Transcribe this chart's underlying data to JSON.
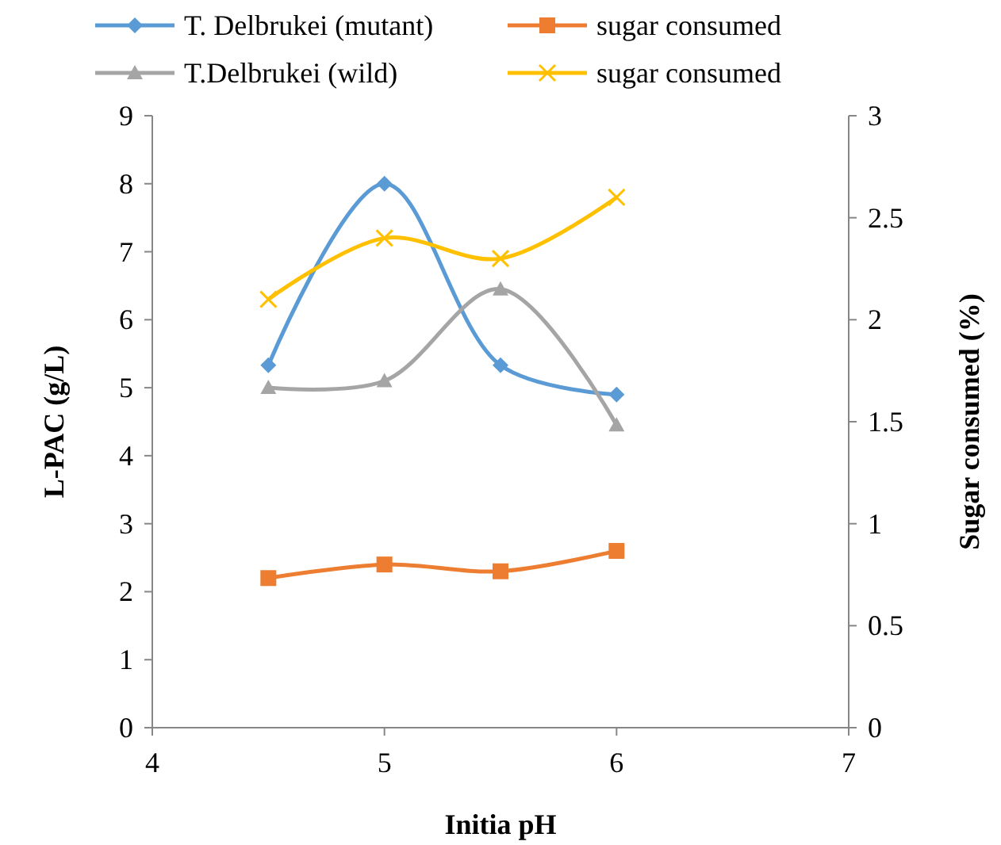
{
  "chart_data": {
    "type": "line",
    "xlabel": "Initia pH",
    "ylabel": "L-PAC (g/L)",
    "y2label": "Sugar consumed (%)",
    "x": [
      4.5,
      5,
      5.5,
      6
    ],
    "xlim": [
      4,
      7
    ],
    "xticks": [
      4,
      5,
      6,
      7
    ],
    "ylim": [
      0,
      9
    ],
    "yticks": [
      0,
      1,
      2,
      3,
      4,
      5,
      6,
      7,
      8,
      9
    ],
    "y2lim": [
      0,
      3
    ],
    "y2ticks": [
      0,
      0.5,
      1,
      1.5,
      2,
      2.5,
      3
    ],
    "grid": false,
    "legend": "top",
    "series": [
      {
        "name": "T. Delbrukei (mutant)",
        "color": "#5b9bd5",
        "marker": "diamond",
        "values": [
          5.33,
          8.0,
          5.33,
          4.9
        ]
      },
      {
        "name": "sugar consumed",
        "color": "#ed7d31",
        "marker": "square",
        "values": [
          2.2,
          2.4,
          2.3,
          2.6
        ]
      },
      {
        "name": "T.Delbrukei (wild)",
        "color": "#a5a5a5",
        "marker": "triangle",
        "values": [
          5.0,
          5.1,
          6.45,
          4.45
        ]
      },
      {
        "name": "sugar consumed",
        "color": "#ffc000",
        "marker": "cross",
        "axis": "y2",
        "values": [
          2.1,
          2.4,
          2.3,
          2.6
        ]
      }
    ]
  }
}
